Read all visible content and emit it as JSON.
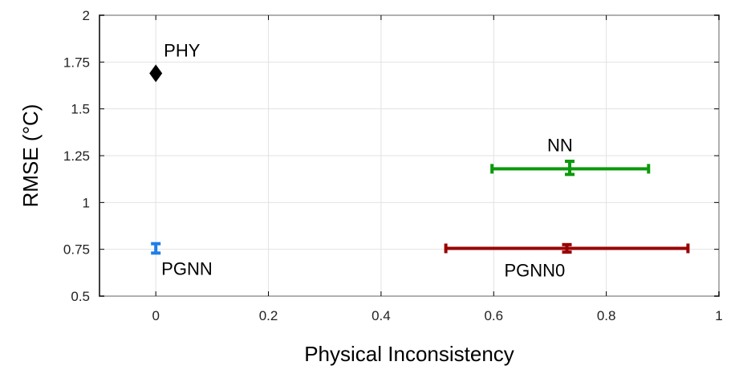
{
  "chart_data": {
    "type": "scatter",
    "xlabel": "Physical Inconsistency",
    "ylabel": "RMSE (°C)",
    "xlim": [
      -0.1,
      1
    ],
    "ylim": [
      0.5,
      2
    ],
    "xticks": [
      "0",
      "0.2",
      "0.4",
      "0.6",
      "0.8",
      "1"
    ],
    "xtick_values": [
      0,
      0.2,
      0.4,
      0.6,
      0.8,
      1
    ],
    "yticks": [
      "0.5",
      "0.75",
      "1",
      "1.25",
      "1.5",
      "1.75",
      "2"
    ],
    "ytick_values": [
      0.5,
      0.75,
      1,
      1.25,
      1.5,
      1.75,
      2
    ],
    "grid": true,
    "points": [
      {
        "label": "PHY",
        "x": 0,
        "y": 1.69,
        "color": "#000000",
        "marker": "diamond"
      },
      {
        "label": "NN",
        "x": 0.735,
        "y": 1.18,
        "color": "#0b9a0b",
        "marker": "errorbar",
        "x_err_low": 0.597,
        "x_err_high": 0.875,
        "y_err_low": 1.15,
        "y_err_high": 1.22
      },
      {
        "label": "PGNN",
        "x": 0,
        "y": 0.76,
        "color": "#1e7fe6",
        "marker": "errorbar",
        "x_err_low": 0,
        "x_err_high": 0,
        "y_err_low": 0.73,
        "y_err_high": 0.78
      },
      {
        "label": "PGNN0",
        "x": 0.73,
        "y": 0.755,
        "color": "#990000",
        "marker": "errorbar",
        "x_err_low": 0.515,
        "x_err_high": 0.945,
        "y_err_low": 0.735,
        "y_err_high": 0.775
      }
    ]
  }
}
